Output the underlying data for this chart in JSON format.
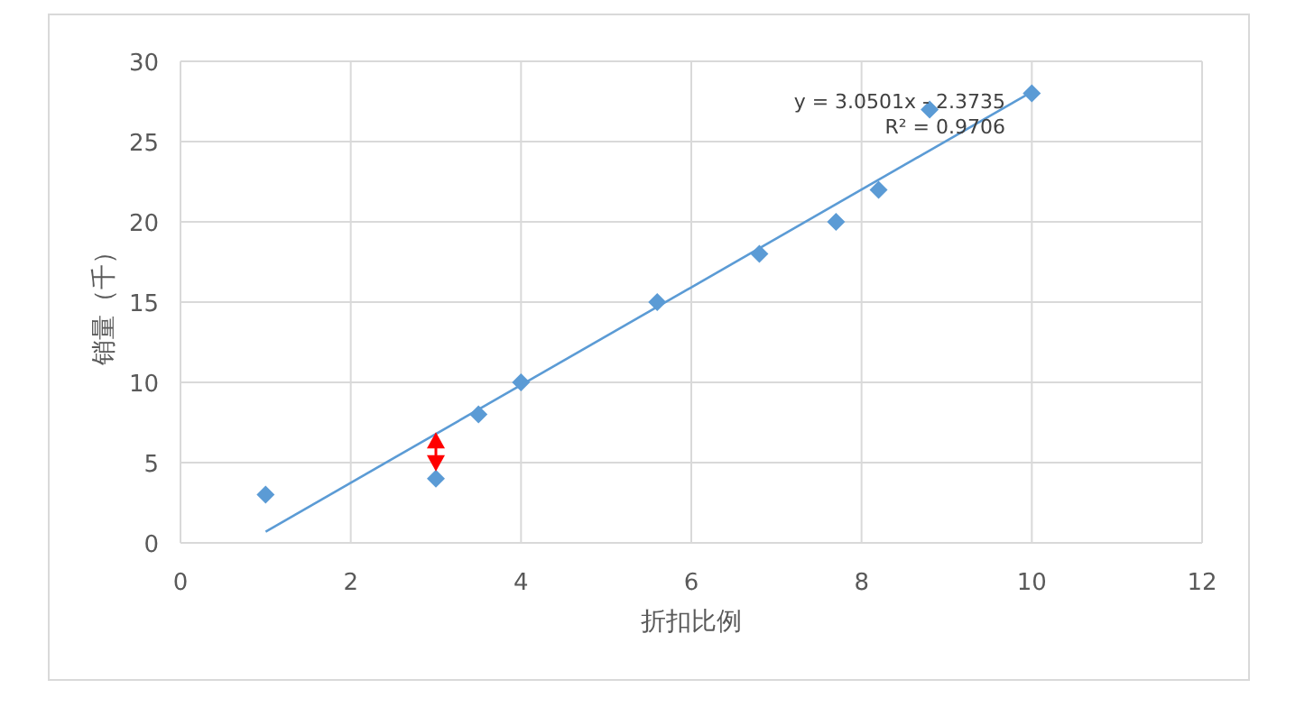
{
  "chart_data": {
    "type": "scatter",
    "xlabel": "折扣比例",
    "ylabel": "销量（千）",
    "xlim": [
      0,
      12
    ],
    "ylim": [
      0,
      30
    ],
    "xticks": [
      0,
      2,
      4,
      6,
      8,
      10,
      12
    ],
    "yticks": [
      0,
      5,
      10,
      15,
      20,
      25,
      30
    ],
    "grid": true,
    "marker": "diamond",
    "series": [
      {
        "type": "scatter",
        "color": "#5b9bd5",
        "x": [
          1,
          3,
          3.5,
          4,
          5.6,
          6.8,
          7.7,
          8.2,
          8.8,
          10
        ],
        "values": [
          3,
          4,
          8,
          10,
          15,
          18,
          20,
          22,
          27,
          28
        ]
      },
      {
        "type": "line",
        "color": "#5b9bd5",
        "x": [
          1,
          10
        ],
        "values": [
          0.7,
          28.1
        ],
        "marker": "none"
      }
    ],
    "annotations": [
      "y = 3.0501x - 2.3735",
      "R² = 0.9706"
    ]
  }
}
